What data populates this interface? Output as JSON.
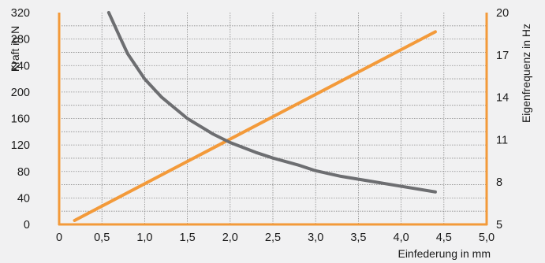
{
  "chart_data": {
    "type": "line",
    "xlabel": "Einfederung in mm",
    "ylabel_left": "Kraft in N",
    "ylabel_right": "Eigenfrequenz in Hz",
    "xlim": [
      0,
      5.0
    ],
    "ylim_left": [
      0,
      320
    ],
    "ylim_right": [
      5,
      20
    ],
    "x_ticks": [
      "0",
      "0,5",
      "1,0",
      "1,5",
      "2,0",
      "2,5",
      "3,0",
      "3,5",
      "4,0",
      "4,5",
      "5,0"
    ],
    "y_left_ticks": [
      "0",
      "40",
      "80",
      "120",
      "160",
      "200",
      "240",
      "280",
      "320"
    ],
    "y_right_ticks": [
      "5",
      "8",
      "11",
      "14",
      "17",
      "20"
    ],
    "grid": true,
    "colors": {
      "force": "#f39a3a",
      "frequency": "#6d6e71",
      "axis": "#f39a3a",
      "grid": "#8a8a8a",
      "background": "#f1f1f2"
    },
    "series": [
      {
        "axis": "left",
        "color": "#f39a3a",
        "x": [
          0.18,
          4.4
        ],
        "y": [
          6,
          291
        ]
      },
      {
        "axis": "right",
        "color": "#6d6e71",
        "x": [
          0.58,
          0.7,
          0.8,
          1.0,
          1.2,
          1.5,
          1.8,
          2.0,
          2.3,
          2.5,
          2.8,
          3.0,
          3.3,
          3.6,
          4.0,
          4.4
        ],
        "y": [
          20.0,
          18.4,
          17.1,
          15.3,
          14.0,
          12.5,
          11.4,
          10.8,
          10.1,
          9.7,
          9.2,
          8.8,
          8.4,
          8.1,
          7.7,
          7.3
        ]
      }
    ]
  }
}
